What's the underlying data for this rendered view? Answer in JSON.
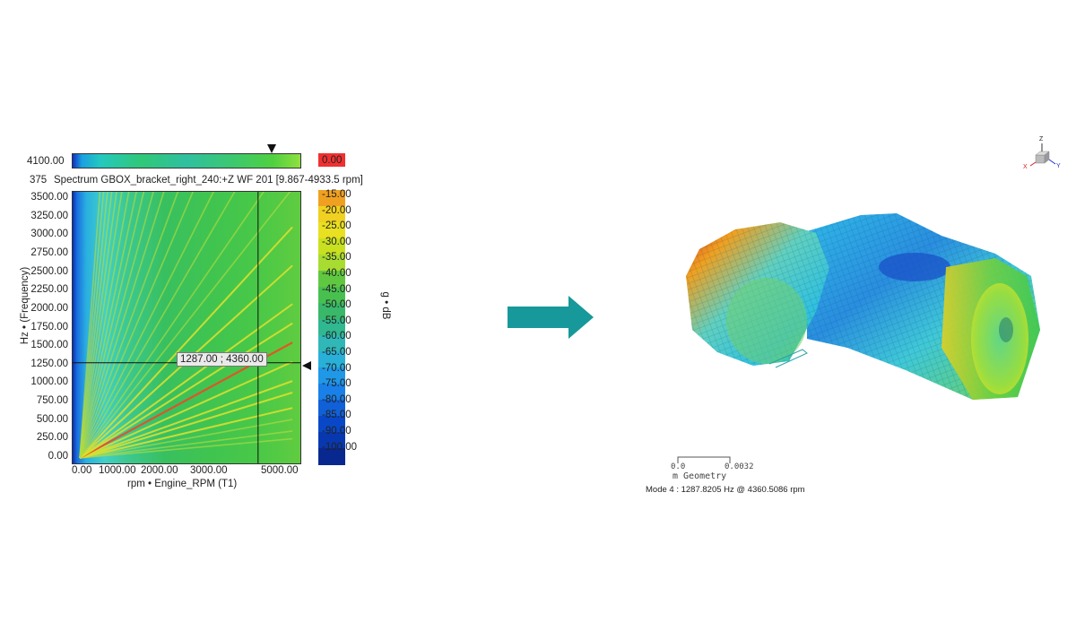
{
  "spectrum_title": "Spectrum GBOX_bracket_right_240:+Z WF 201 [9.867-4933.5 rpm]",
  "top_strip_label": "4100.00",
  "title_row_prefix": "375",
  "cursor_readout": "1287.00 ; 4360.00",
  "y_axis_label": "Hz • (Frequency)",
  "x_axis_label": "rpm • Engine_RPM (T1)",
  "y_ticks": [
    "3500.00",
    "3250.00",
    "3000.00",
    "2750.00",
    "2500.00",
    "2250.00",
    "2000.00",
    "1750.00",
    "1500.00",
    "1250.00",
    "1000.00",
    "750.00",
    "500.00",
    "250.00",
    "0.00"
  ],
  "x_ticks": [
    "0.00",
    "1000.00",
    "2000.00",
    "3000.00",
    "5000.00"
  ],
  "colorbar": {
    "unit_label": "g • dB",
    "top_value": "0.00",
    "ticks": [
      "-15.00",
      "-20.00",
      "-25.00",
      "-30.00",
      "-35.00",
      "-40.00",
      "-45.00",
      "-50.00",
      "-55.00",
      "-60.00",
      "-65.00",
      "-70.00",
      "-75.00",
      "-80.00",
      "-85.00",
      "-90.00",
      "-100.00"
    ],
    "colors": [
      "#f0a020",
      "#f0d020",
      "#e8e020",
      "#c8e020",
      "#a8dc30",
      "#60c840",
      "#48c050",
      "#38b868",
      "#30b890",
      "#30b8b8",
      "#28b0d8",
      "#2098e8",
      "#1880e8",
      "#1060d8",
      "#0848c8",
      "#0838b0",
      "#082890"
    ]
  },
  "chart_data": {
    "type": "heatmap",
    "title": "Spectrum GBOX_bracket_right_240:+Z WF 201 [9.867-4933.5 rpm]",
    "xlabel": "rpm • Engine_RPM (T1)",
    "ylabel": "Hz • (Frequency)",
    "xlim": [
      0,
      5000
    ],
    "ylim": [
      0,
      3600
    ],
    "cursor": {
      "x": 4360.0,
      "y": 1287.0
    },
    "colorbar_range_db": [
      -100,
      0
    ],
    "order_line_slopes_hz_per_rpm": [
      0.05,
      0.07,
      0.1,
      0.13,
      0.17,
      0.2,
      0.25,
      0.3,
      0.35,
      0.4,
      0.5,
      0.6,
      0.7,
      0.8,
      0.95,
      1.1,
      1.3,
      1.5,
      1.75,
      2.0,
      2.3,
      2.6,
      3.0,
      3.5,
      4.0,
      4.6,
      5.3,
      6.2,
      7.3
    ]
  },
  "mode_shape": {
    "scale_min": "0.0",
    "scale_max": "0.0032",
    "scale_unit": "m Geometry",
    "caption": "Mode  4 : 1287.8205 Hz @ 4360.5086 rpm",
    "triad_z": "Z",
    "triad_y": "Y",
    "triad_x": "X"
  }
}
